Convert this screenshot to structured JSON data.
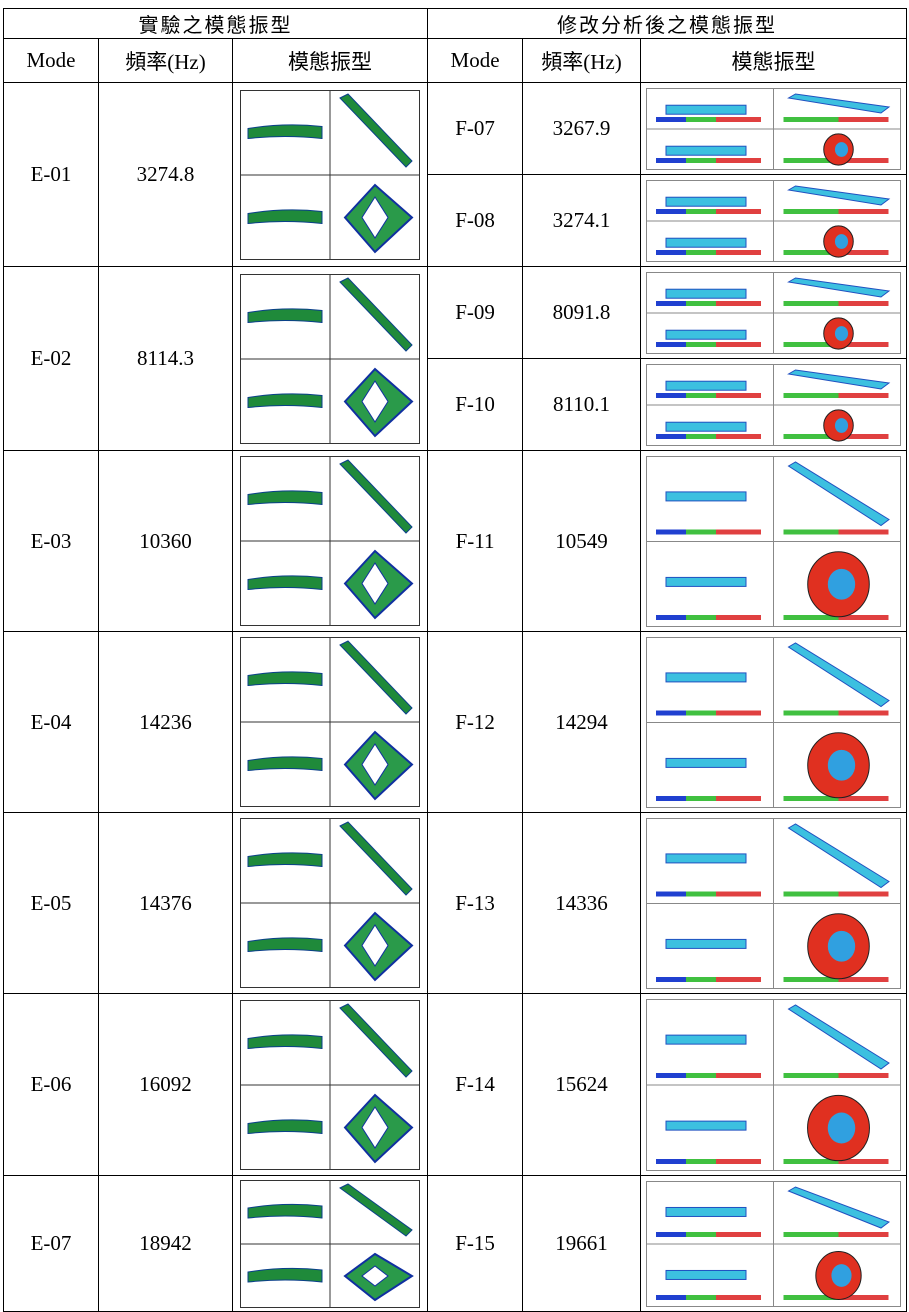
{
  "table": {
    "group_headers": [
      "實驗之模態振型",
      "修改分析後之模態振型"
    ],
    "column_headers": [
      "Mode",
      "頻率(Hz)",
      "模態振型",
      "Mode",
      "頻率(Hz)",
      "模態振型"
    ],
    "experimental": [
      {
        "mode": "E-01",
        "frequency": 3274.8
      },
      {
        "mode": "E-02",
        "frequency": 8114.3
      },
      {
        "mode": "E-03",
        "frequency": 10360
      },
      {
        "mode": "E-04",
        "frequency": 14236
      },
      {
        "mode": "E-05",
        "frequency": 14376
      },
      {
        "mode": "E-06",
        "frequency": 16092
      },
      {
        "mode": "E-07",
        "frequency": 18942
      }
    ],
    "analysis": [
      {
        "mode": "F-07",
        "frequency": 3267.9
      },
      {
        "mode": "F-08",
        "frequency": 3274.1
      },
      {
        "mode": "F-09",
        "frequency": 8091.8
      },
      {
        "mode": "F-10",
        "frequency": 8110.1
      },
      {
        "mode": "F-11",
        "frequency": 10549
      },
      {
        "mode": "F-12",
        "frequency": 14294
      },
      {
        "mode": "F-13",
        "frequency": 14336
      },
      {
        "mode": "F-14",
        "frequency": 15624
      },
      {
        "mode": "F-15",
        "frequency": 19661
      }
    ]
  }
}
